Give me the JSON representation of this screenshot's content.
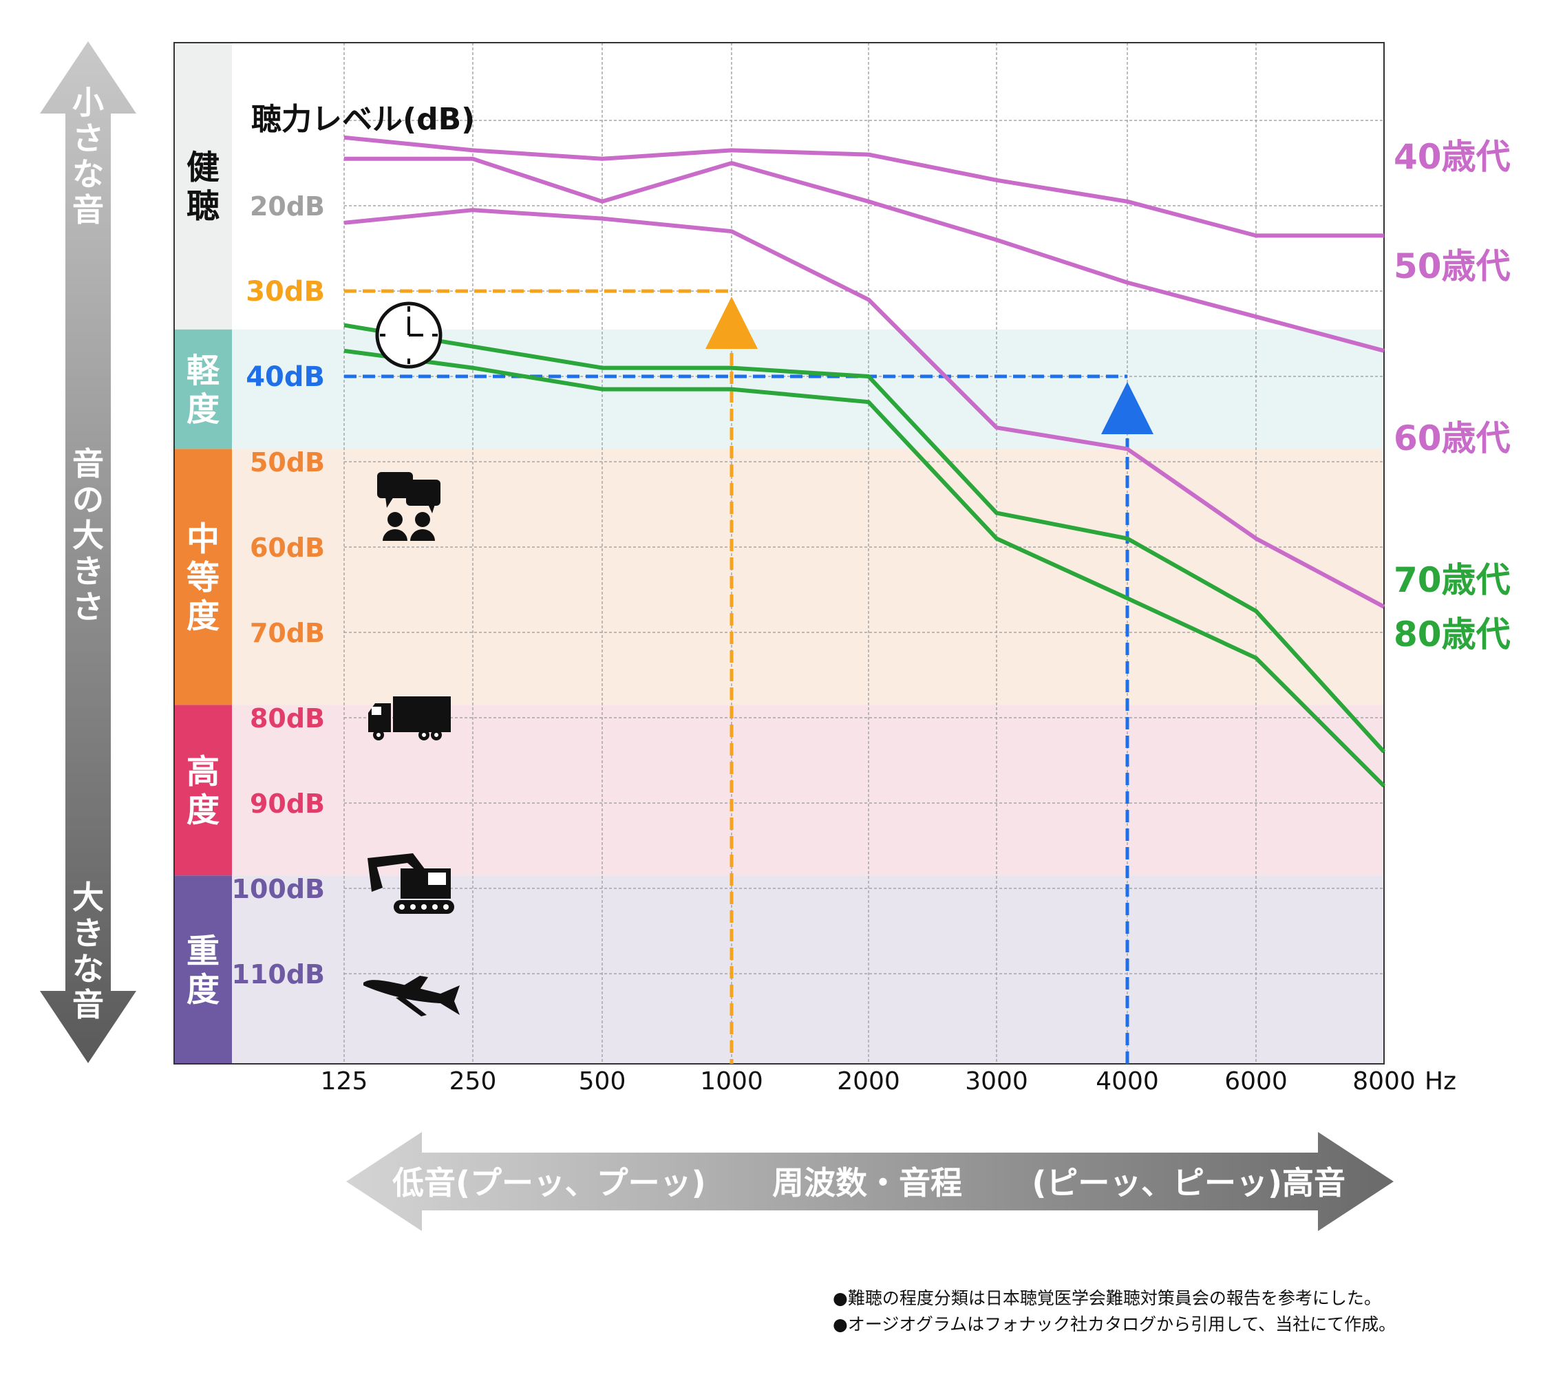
{
  "chart_data": {
    "type": "line",
    "title": "聴力レベル(dB)",
    "x_unit": "Hz",
    "x_ticks": [
      "125",
      "250",
      "500",
      "1000",
      "2000",
      "3000",
      "4000",
      "6000",
      "8000"
    ],
    "y_unit": "dB",
    "y_range": [
      10,
      120
    ],
    "y_reversed": true,
    "grid": true,
    "series": [
      {
        "name": "40歳代",
        "color": "#c96bc9",
        "points": [
          [
            125,
            12
          ],
          [
            250,
            13.5
          ],
          [
            500,
            14.5
          ],
          [
            1000,
            13.5
          ],
          [
            2000,
            14
          ],
          [
            3000,
            17
          ],
          [
            4000,
            19.5
          ],
          [
            6000,
            23.5
          ],
          [
            8000,
            23.5
          ]
        ]
      },
      {
        "name": "50歳代",
        "color": "#c96bc9",
        "points": [
          [
            125,
            14.5
          ],
          [
            250,
            14.5
          ],
          [
            500,
            19.5
          ],
          [
            1000,
            15
          ],
          [
            2000,
            19.5
          ],
          [
            3000,
            24
          ],
          [
            4000,
            29
          ],
          [
            6000,
            33
          ],
          [
            8000,
            37
          ]
        ]
      },
      {
        "name": "60歳代",
        "color": "#c96bc9",
        "points": [
          [
            125,
            22
          ],
          [
            250,
            20.5
          ],
          [
            500,
            21.5
          ],
          [
            1000,
            23
          ],
          [
            2000,
            31
          ],
          [
            3000,
            46
          ],
          [
            4000,
            48.5
          ],
          [
            6000,
            59
          ],
          [
            8000,
            67
          ]
        ]
      },
      {
        "name": "70歳代",
        "color": "#2aa63a",
        "points": [
          [
            125,
            34
          ],
          [
            250,
            36.5
          ],
          [
            500,
            39
          ],
          [
            1000,
            39
          ],
          [
            2000,
            40
          ],
          [
            3000,
            56
          ],
          [
            4000,
            59
          ],
          [
            6000,
            67.5
          ],
          [
            8000,
            84
          ]
        ]
      },
      {
        "name": "80歳代",
        "color": "#2aa63a",
        "points": [
          [
            125,
            37
          ],
          [
            250,
            39
          ],
          [
            500,
            41.5
          ],
          [
            1000,
            41.5
          ],
          [
            2000,
            43
          ],
          [
            3000,
            59
          ],
          [
            4000,
            66
          ],
          [
            6000,
            73
          ],
          [
            8000,
            88
          ]
        ]
      }
    ],
    "y_labels": [
      "20dB",
      "30dB",
      "40dB",
      "50dB",
      "60dB",
      "70dB",
      "80dB",
      "90dB",
      "100dB",
      "110dB"
    ],
    "bands": [
      {
        "label": "健聴",
        "from": 0,
        "to": 34.5
      },
      {
        "label": "軽度",
        "from": 34.5,
        "to": 48.5
      },
      {
        "label": "中等度",
        "from": 48.5,
        "to": 78.5
      },
      {
        "label": "高度",
        "from": 78.5,
        "to": 98.5
      },
      {
        "label": "重度",
        "from": 98.5,
        "to": 128
      }
    ],
    "reference_lines": [
      {
        "label": "30dB",
        "freq": 1000,
        "db": 30,
        "color": "#f7a21b"
      },
      {
        "label": "40dB",
        "freq": 4000,
        "db": 40,
        "color": "#1f6fe8"
      }
    ]
  },
  "colors": {
    "band_normal_fill": "#ffffff",
    "band_normal_tab": "#eef0ef",
    "band_mild_fill": "#e8f5f4",
    "band_mild_tab": "#7fc7bd",
    "band_moderate_fill": "#fbece2",
    "band_moderate_tab": "#f08536",
    "band_severe_fill": "#f8e3e8",
    "band_severe_tab": "#e23d6a",
    "band_profound_fill": "#e8e5ef",
    "band_profound_tab": "#6d5aa3",
    "grid": "#a5a5a5"
  },
  "left_arrow": {
    "top_text": "小さな音",
    "middle_text": "音の大きさ",
    "bottom_text": "大きな音"
  },
  "bottom_arrow": {
    "low_text": "低音(プーッ、プーッ)",
    "middle_text": "周波数・音程",
    "high_text": "(ピーッ、ピーッ)高音"
  },
  "icons": [
    "clock-icon",
    "conversation-icon",
    "truck-icon",
    "excavator-icon",
    "airplane-icon"
  ],
  "notes": [
    "●難聴の程度分類は日本聴覚医学会難聴対策員会の報告を参考にした。",
    "●オージオグラムはフォナック社カタログから引用して、当社にて作成。"
  ]
}
